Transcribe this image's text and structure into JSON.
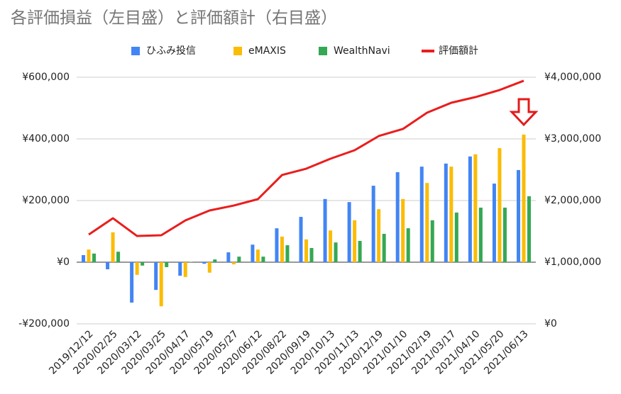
{
  "chart_data": {
    "type": "bar",
    "title": "各評価損益（左目盛）と評価額計（右目盛）",
    "categories": [
      "2019/12/12",
      "2020/02/25",
      "2020/03/12",
      "2020/03/25",
      "2020/04/17",
      "2020/05/19",
      "2020/05/27",
      "2020/06/12",
      "2020/08/22",
      "2020/09/19",
      "2020/10/13",
      "2020/11/13",
      "2020/12/19",
      "2021/01/10",
      "2021/02/19",
      "2021/03/17",
      "2021/04/10",
      "2021/05/20",
      "2021/06/13"
    ],
    "series": [
      {
        "name": "ひふみ投信",
        "color": "#4285f4",
        "type": "bar",
        "values": [
          23000,
          -23000,
          -131000,
          -90000,
          -44000,
          -5000,
          32000,
          57000,
          110000,
          147000,
          205000,
          195000,
          248000,
          292000,
          310000,
          320000,
          343000,
          255000,
          299000
        ]
      },
      {
        "name": "eMAXIS",
        "color": "#fbbc04",
        "type": "bar",
        "values": [
          41000,
          97000,
          -41000,
          -143000,
          -48000,
          -34000,
          -7000,
          41000,
          83000,
          74000,
          103000,
          136000,
          172000,
          205000,
          257000,
          310000,
          350000,
          370000,
          414000
        ]
      },
      {
        "name": "WealthNavi",
        "color": "#34a853",
        "type": "bar",
        "values": [
          28000,
          34000,
          -11000,
          -16000,
          1000,
          9000,
          18000,
          18000,
          55000,
          46000,
          64000,
          69000,
          92000,
          110000,
          136000,
          161000,
          177000,
          177000,
          214000
        ]
      },
      {
        "name": "評価額計",
        "color": "#ea1d1d",
        "type": "line",
        "axis": "y2",
        "values": [
          1448000,
          1713000,
          1425000,
          1437000,
          1678000,
          1839000,
          1919000,
          2023000,
          2414000,
          2517000,
          2678000,
          2816000,
          3046000,
          3161000,
          3425000,
          3586000,
          3678000,
          3793000,
          3943000
        ]
      }
    ],
    "ylim": [
      -200000,
      600000
    ],
    "yticks": [
      {
        "value": -200000,
        "label": "-¥200,000"
      },
      {
        "value": 0,
        "label": "¥0"
      },
      {
        "value": 200000,
        "label": "¥200,000"
      },
      {
        "value": 400000,
        "label": "¥400,000"
      },
      {
        "value": 600000,
        "label": "¥600,000"
      }
    ],
    "y2lim": [
      0,
      4000000
    ],
    "y2ticks": [
      {
        "value": 0,
        "label": "¥0"
      },
      {
        "value": 1000000,
        "label": "¥1,000,000"
      },
      {
        "value": 2000000,
        "label": "¥2,000,000"
      },
      {
        "value": 3000000,
        "label": "¥3,000,000"
      },
      {
        "value": 4000000,
        "label": "¥4,000,000"
      }
    ],
    "grid": true,
    "legend": "top"
  }
}
